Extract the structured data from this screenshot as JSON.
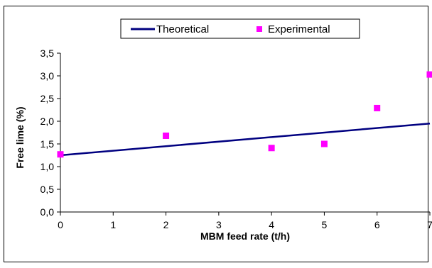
{
  "chart_data": {
    "type": "scatter",
    "xlabel": "MBM feed rate (t/h)",
    "ylabel": "Free lime (%)",
    "xlim": [
      0,
      7
    ],
    "ylim": [
      0,
      3.5
    ],
    "x_ticks": [
      "0",
      "1",
      "2",
      "3",
      "4",
      "5",
      "6",
      "7"
    ],
    "y_ticks": [
      "0,0",
      "0,5",
      "1,0",
      "1,5",
      "2,0",
      "2,5",
      "3,0",
      "3,5"
    ],
    "grid": false,
    "legend_position": "top",
    "series": [
      {
        "name": "Theoretical",
        "kind": "line",
        "color": "#000080",
        "x": [
          0,
          7
        ],
        "y": [
          1.25,
          1.95
        ]
      },
      {
        "name": "Experimental",
        "kind": "scatter",
        "color": "#ff00ff",
        "x": [
          0,
          2,
          4,
          5,
          6,
          7
        ],
        "y": [
          1.27,
          1.68,
          1.41,
          1.5,
          2.29,
          3.03
        ]
      }
    ]
  }
}
